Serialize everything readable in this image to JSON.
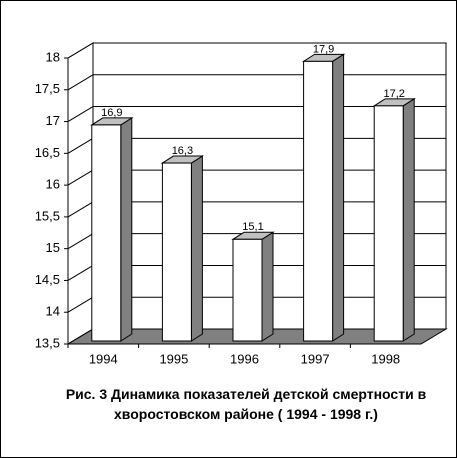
{
  "chart_data": {
    "type": "bar3d",
    "title": "Рис. 3 Динамика показателей детской смертности в хворостовском районе ( 1994 - 1998 г.)",
    "categories": [
      "1994",
      "1995",
      "1996",
      "1997",
      "1998"
    ],
    "values": [
      16.9,
      16.3,
      15.1,
      17.9,
      17.2
    ],
    "value_labels": [
      "16,9",
      "16,3",
      "15,1",
      "17,9",
      "17,2"
    ],
    "color": "#ffffff",
    "side_color": "#808080",
    "top_color": "#c0c0c0",
    "floor_color": "#808080",
    "ylim": [
      13.5,
      18
    ],
    "yticks": [
      {
        "value": 13.5,
        "label": "13,5"
      },
      14,
      {
        "value": 14.5,
        "label": "14,5"
      },
      15,
      {
        "value": 15.5,
        "label": "15,5"
      },
      16,
      {
        "value": 16.5,
        "label": "16,5"
      },
      17,
      {
        "value": 17.5,
        "label": "17,5"
      },
      18
    ],
    "grid": true
  }
}
